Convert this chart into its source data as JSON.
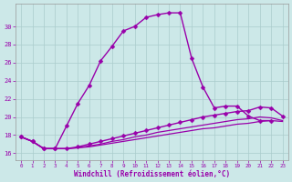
{
  "xlabel": "Windchill (Refroidissement éolien,°C)",
  "background_color": "#cce8e8",
  "line_color": "#9900aa",
  "grid_color": "#aacccc",
  "x_ticks": [
    0,
    1,
    2,
    3,
    4,
    5,
    6,
    7,
    8,
    9,
    10,
    11,
    12,
    13,
    14,
    15,
    16,
    17,
    18,
    19,
    20,
    21,
    22,
    23
  ],
  "y_ticks": [
    16,
    18,
    20,
    22,
    24,
    26,
    28,
    30
  ],
  "ylim": [
    15.2,
    32.5
  ],
  "xlim": [
    -0.5,
    23.5
  ],
  "curves": [
    {
      "x": [
        0,
        1,
        2,
        3,
        4,
        5,
        6,
        7,
        8,
        9,
        10,
        11,
        12,
        13,
        14,
        15,
        16,
        17,
        18,
        19,
        20,
        21,
        22
      ],
      "y": [
        17.8,
        17.3,
        16.5,
        16.5,
        19.0,
        21.5,
        23.5,
        26.2,
        27.8,
        29.5,
        30.0,
        31.0,
        31.3,
        31.5,
        31.5,
        26.5,
        23.3,
        21.0,
        21.2,
        21.2,
        20.1,
        19.6,
        19.6
      ],
      "marker": "D",
      "ms": 2.5,
      "lw": 1.0
    },
    {
      "x": [
        0,
        1,
        2,
        3,
        4,
        5,
        6,
        7,
        8,
        9,
        10,
        11,
        12,
        13,
        14,
        15,
        16,
        17,
        18,
        19,
        20,
        21,
        22,
        23
      ],
      "y": [
        17.8,
        17.3,
        16.5,
        16.5,
        16.5,
        16.7,
        17.0,
        17.3,
        17.6,
        17.9,
        18.2,
        18.5,
        18.8,
        19.1,
        19.4,
        19.7,
        20.0,
        20.2,
        20.4,
        20.6,
        20.7,
        21.1,
        21.0,
        20.1
      ],
      "marker": "D",
      "ms": 2.5,
      "lw": 1.0
    },
    {
      "x": [
        0,
        1,
        2,
        3,
        4,
        5,
        6,
        7,
        8,
        9,
        10,
        11,
        12,
        13,
        14,
        15,
        16,
        17,
        18,
        19,
        20,
        21,
        22,
        23
      ],
      "y": [
        17.8,
        17.3,
        16.5,
        16.5,
        16.5,
        16.6,
        16.8,
        17.0,
        17.3,
        17.5,
        17.8,
        18.0,
        18.3,
        18.5,
        18.7,
        18.9,
        19.1,
        19.3,
        19.5,
        19.7,
        19.8,
        20.0,
        19.9,
        19.6
      ],
      "marker": null,
      "ms": 0,
      "lw": 0.9
    },
    {
      "x": [
        0,
        1,
        2,
        3,
        4,
        5,
        6,
        7,
        8,
        9,
        10,
        11,
        12,
        13,
        14,
        15,
        16,
        17,
        18,
        19,
        20,
        21,
        22,
        23
      ],
      "y": [
        17.8,
        17.3,
        16.5,
        16.5,
        16.5,
        16.6,
        16.7,
        16.9,
        17.1,
        17.3,
        17.5,
        17.7,
        17.9,
        18.1,
        18.3,
        18.5,
        18.7,
        18.8,
        19.0,
        19.2,
        19.3,
        19.5,
        19.6,
        19.5
      ],
      "marker": null,
      "ms": 0,
      "lw": 0.9
    }
  ]
}
